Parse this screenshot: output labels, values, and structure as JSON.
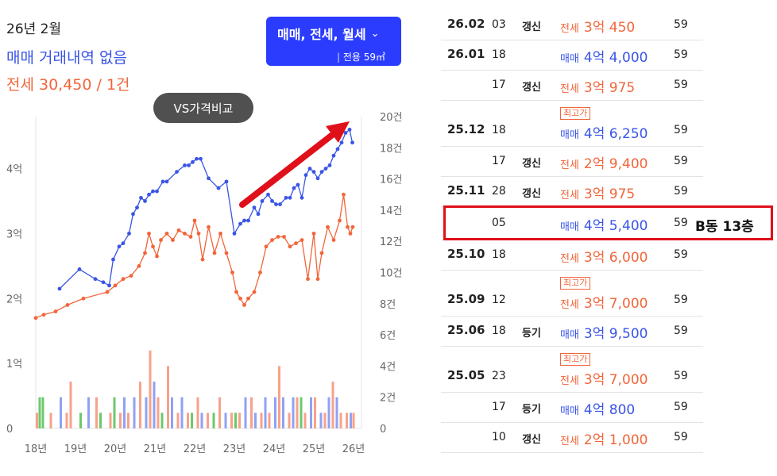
{
  "summary": {
    "month": "26년 2월",
    "sale_line": "매매 거래내역 없음",
    "rent_line": "전세 30,450 / 1건"
  },
  "filter": {
    "label": "매매, 전세, 월세",
    "sub": "전용 59㎡"
  },
  "compare_button": "VS가격비교",
  "colors": {
    "sale": "#3a55e6",
    "rent": "#f2653a",
    "highlight": "#e0101a",
    "filter_bg": "#2b3cff"
  },
  "icons": {
    "filter_chevron": "chevron-down-icon",
    "trend_arrow": "trend-up-arrow-icon"
  },
  "annotation": "B동 13층",
  "chart_data": {
    "type": "line",
    "x_tick_labels": [
      "18년",
      "19년",
      "20년",
      "21년",
      "22년",
      "23년",
      "24년",
      "25년",
      "26년"
    ],
    "y_left_tick_labels": [
      "0",
      "1억",
      "2억",
      "3억",
      "4억"
    ],
    "y_left_range": [
      0,
      4.8
    ],
    "y_right_tick_labels": [
      "0",
      "2건",
      "4건",
      "6건",
      "8건",
      "10건",
      "12건",
      "14건",
      "16건",
      "18건",
      "20건"
    ],
    "y_right_range": [
      0,
      20
    ],
    "series": [
      {
        "name": "매매",
        "color": "#3a55e6",
        "points": [
          [
            2018.6,
            2.15
          ],
          [
            2019.1,
            2.45
          ],
          [
            2019.5,
            2.3
          ],
          [
            2019.7,
            2.25
          ],
          [
            2019.85,
            2.2
          ],
          [
            2019.95,
            2.6
          ],
          [
            2020.1,
            2.8
          ],
          [
            2020.2,
            2.85
          ],
          [
            2020.35,
            3.0
          ],
          [
            2020.45,
            3.3
          ],
          [
            2020.55,
            3.4
          ],
          [
            2020.65,
            3.55
          ],
          [
            2020.75,
            3.5
          ],
          [
            2020.85,
            3.6
          ],
          [
            2020.95,
            3.65
          ],
          [
            2021.05,
            3.65
          ],
          [
            2021.2,
            3.8
          ],
          [
            2021.3,
            3.8
          ],
          [
            2021.55,
            3.95
          ],
          [
            2021.75,
            4.05
          ],
          [
            2021.85,
            4.05
          ],
          [
            2021.95,
            4.1
          ],
          [
            2022.05,
            4.15
          ],
          [
            2022.15,
            4.15
          ],
          [
            2022.35,
            3.85
          ],
          [
            2022.6,
            3.7
          ],
          [
            2022.8,
            3.8
          ],
          [
            2023.0,
            3.0
          ],
          [
            2023.15,
            3.15
          ],
          [
            2023.25,
            3.2
          ],
          [
            2023.35,
            3.2
          ],
          [
            2023.5,
            3.4
          ],
          [
            2023.6,
            3.3
          ],
          [
            2023.7,
            3.5
          ],
          [
            2023.85,
            3.6
          ],
          [
            2023.95,
            3.5
          ],
          [
            2024.05,
            3.45
          ],
          [
            2024.15,
            3.45
          ],
          [
            2024.3,
            3.55
          ],
          [
            2024.4,
            3.55
          ],
          [
            2024.5,
            3.7
          ],
          [
            2024.6,
            3.75
          ],
          [
            2024.7,
            3.55
          ],
          [
            2024.8,
            3.9
          ],
          [
            2024.9,
            4.0
          ],
          [
            2025.0,
            3.95
          ],
          [
            2025.1,
            3.85
          ],
          [
            2025.2,
            3.95
          ],
          [
            2025.3,
            4.0
          ],
          [
            2025.4,
            4.05
          ],
          [
            2025.5,
            4.2
          ],
          [
            2025.6,
            4.3
          ],
          [
            2025.7,
            4.4
          ],
          [
            2025.8,
            4.55
          ],
          [
            2025.9,
            4.6
          ],
          [
            2025.97,
            4.4
          ]
        ]
      },
      {
        "name": "전세",
        "color": "#f2653a",
        "points": [
          [
            2018.0,
            1.7
          ],
          [
            2018.2,
            1.75
          ],
          [
            2018.5,
            1.8
          ],
          [
            2018.8,
            1.9
          ],
          [
            2019.2,
            2.0
          ],
          [
            2019.8,
            2.1
          ],
          [
            2020.0,
            2.2
          ],
          [
            2020.2,
            2.3
          ],
          [
            2020.4,
            2.35
          ],
          [
            2020.6,
            2.5
          ],
          [
            2020.75,
            2.7
          ],
          [
            2020.85,
            3.0
          ],
          [
            2020.95,
            2.8
          ],
          [
            2021.05,
            2.65
          ],
          [
            2021.15,
            2.9
          ],
          [
            2021.3,
            3.0
          ],
          [
            2021.45,
            2.9
          ],
          [
            2021.6,
            3.05
          ],
          [
            2021.75,
            3.0
          ],
          [
            2021.9,
            2.95
          ],
          [
            2022.0,
            3.2
          ],
          [
            2022.1,
            3.0
          ],
          [
            2022.2,
            2.6
          ],
          [
            2022.35,
            3.1
          ],
          [
            2022.5,
            2.7
          ],
          [
            2022.65,
            3.0
          ],
          [
            2022.8,
            2.7
          ],
          [
            2022.95,
            2.4
          ],
          [
            2023.05,
            2.1
          ],
          [
            2023.15,
            2.0
          ],
          [
            2023.25,
            1.9
          ],
          [
            2023.35,
            2.0
          ],
          [
            2023.5,
            2.1
          ],
          [
            2023.65,
            2.4
          ],
          [
            2023.8,
            2.8
          ],
          [
            2023.95,
            2.9
          ],
          [
            2024.1,
            2.95
          ],
          [
            2024.25,
            2.95
          ],
          [
            2024.4,
            2.8
          ],
          [
            2024.55,
            2.85
          ],
          [
            2024.7,
            2.9
          ],
          [
            2024.85,
            2.3
          ],
          [
            2025.0,
            3.0
          ],
          [
            2025.1,
            2.3
          ],
          [
            2025.2,
            2.7
          ],
          [
            2025.35,
            3.1
          ],
          [
            2025.5,
            2.9
          ],
          [
            2025.65,
            3.2
          ],
          [
            2025.75,
            3.6
          ],
          [
            2025.85,
            3.1
          ],
          [
            2025.92,
            3.0
          ],
          [
            2025.98,
            3.1
          ]
        ]
      }
    ],
    "volume_bars": {
      "series_order": [
        "전세",
        "매매",
        "월세"
      ],
      "colors": [
        "#f7a28a",
        "#8fa2f4",
        "#6cc86c"
      ],
      "bars": [
        [
          2018.0,
          [
            1,
            0,
            0
          ]
        ],
        [
          2018.07,
          [
            0,
            0,
            2
          ]
        ],
        [
          2018.15,
          [
            0,
            0,
            2
          ]
        ],
        [
          2018.35,
          [
            1,
            0,
            0
          ]
        ],
        [
          2018.6,
          [
            0,
            2,
            0
          ]
        ],
        [
          2018.75,
          [
            1,
            0,
            0
          ]
        ],
        [
          2018.85,
          [
            3,
            0,
            0
          ]
        ],
        [
          2019.1,
          [
            0,
            0,
            1
          ]
        ],
        [
          2019.3,
          [
            0,
            2,
            0
          ]
        ],
        [
          2019.5,
          [
            2,
            0,
            0
          ]
        ],
        [
          2019.6,
          [
            0,
            0,
            1
          ]
        ],
        [
          2019.85,
          [
            1,
            0,
            0
          ]
        ],
        [
          2019.95,
          [
            0,
            0,
            2
          ]
        ],
        [
          2020.1,
          [
            1,
            0,
            0
          ]
        ],
        [
          2020.2,
          [
            0,
            2,
            0
          ]
        ],
        [
          2020.3,
          [
            1,
            0,
            0
          ]
        ],
        [
          2020.45,
          [
            0,
            2,
            0
          ]
        ],
        [
          2020.6,
          [
            3,
            0,
            0
          ]
        ],
        [
          2020.75,
          [
            0,
            2,
            0
          ]
        ],
        [
          2020.85,
          [
            5,
            0,
            0
          ]
        ],
        [
          2020.95,
          [
            0,
            3,
            0
          ]
        ],
        [
          2021.05,
          [
            2,
            0,
            0
          ]
        ],
        [
          2021.15,
          [
            0,
            0,
            1
          ]
        ],
        [
          2021.3,
          [
            4,
            0,
            0
          ]
        ],
        [
          2021.4,
          [
            0,
            2,
            0
          ]
        ],
        [
          2021.55,
          [
            1,
            0,
            0
          ]
        ],
        [
          2021.65,
          [
            0,
            2,
            0
          ]
        ],
        [
          2021.8,
          [
            1,
            0,
            0
          ]
        ],
        [
          2021.9,
          [
            0,
            0,
            1
          ]
        ],
        [
          2022.05,
          [
            2,
            0,
            0
          ]
        ],
        [
          2022.15,
          [
            0,
            1,
            0
          ]
        ],
        [
          2022.3,
          [
            1,
            0,
            0
          ]
        ],
        [
          2022.45,
          [
            0,
            0,
            1
          ]
        ],
        [
          2022.6,
          [
            2,
            0,
            0
          ]
        ],
        [
          2022.75,
          [
            0,
            1,
            0
          ]
        ],
        [
          2022.9,
          [
            1,
            0,
            0
          ]
        ],
        [
          2023.0,
          [
            0,
            0,
            1
          ]
        ],
        [
          2023.1,
          [
            1,
            0,
            0
          ]
        ],
        [
          2023.25,
          [
            0,
            2,
            0
          ]
        ],
        [
          2023.4,
          [
            2,
            0,
            0
          ]
        ],
        [
          2023.5,
          [
            0,
            1,
            0
          ]
        ],
        [
          2023.65,
          [
            1,
            0,
            0
          ]
        ],
        [
          2023.75,
          [
            0,
            2,
            0
          ]
        ],
        [
          2023.85,
          [
            1,
            0,
            0
          ]
        ],
        [
          2024.0,
          [
            0,
            2,
            0
          ]
        ],
        [
          2024.1,
          [
            4,
            0,
            0
          ]
        ],
        [
          2024.2,
          [
            0,
            2,
            0
          ]
        ],
        [
          2024.35,
          [
            1,
            0,
            0
          ]
        ],
        [
          2024.45,
          [
            0,
            2,
            0
          ]
        ],
        [
          2024.55,
          [
            2,
            0,
            0
          ]
        ],
        [
          2024.65,
          [
            0,
            0,
            2
          ]
        ],
        [
          2024.75,
          [
            1,
            0,
            0
          ]
        ],
        [
          2024.9,
          [
            0,
            2,
            0
          ]
        ],
        [
          2025.0,
          [
            2,
            0,
            0
          ]
        ],
        [
          2025.15,
          [
            0,
            1,
            0
          ]
        ],
        [
          2025.25,
          [
            1,
            0,
            0
          ]
        ],
        [
          2025.35,
          [
            0,
            2,
            0
          ]
        ],
        [
          2025.45,
          [
            3,
            0,
            0
          ]
        ],
        [
          2025.55,
          [
            0,
            2,
            0
          ]
        ],
        [
          2025.65,
          [
            1,
            0,
            0
          ]
        ],
        [
          2025.8,
          [
            1,
            0,
            0
          ]
        ],
        [
          2025.9,
          [
            0,
            1,
            0
          ]
        ],
        [
          2025.97,
          [
            1,
            0,
            0
          ]
        ]
      ]
    }
  },
  "transactions": [
    {
      "date": "26.02",
      "day": "03",
      "renew": "갱신",
      "badge": "",
      "type": "전세",
      "type_class": "rent",
      "price": "3억 450",
      "area": "59"
    },
    {
      "date": "26.01",
      "day": "18",
      "renew": "",
      "badge": "",
      "type": "매매",
      "type_class": "sale",
      "price": "4억 4,000",
      "area": "59"
    },
    {
      "date": "",
      "day": "17",
      "renew": "갱신",
      "badge": "",
      "type": "전세",
      "type_class": "rent",
      "price": "3억 975",
      "area": "59"
    },
    {
      "date": "25.12",
      "day": "18",
      "renew": "",
      "badge": "최고가",
      "type": "매매",
      "type_class": "sale",
      "price": "4억 6,250",
      "area": "59"
    },
    {
      "date": "",
      "day": "17",
      "renew": "갱신",
      "badge": "",
      "type": "전세",
      "type_class": "rent",
      "price": "2억 9,400",
      "area": "59"
    },
    {
      "date": "25.11",
      "day": "28",
      "renew": "갱신",
      "badge": "",
      "type": "전세",
      "type_class": "rent",
      "price": "3억 975",
      "area": "59"
    },
    {
      "date": "",
      "day": "05",
      "renew": "",
      "badge": "",
      "type": "매매",
      "type_class": "sale",
      "price": "4억 5,400",
      "area": "59"
    },
    {
      "date": "25.10",
      "day": "18",
      "renew": "",
      "badge": "",
      "type": "전세",
      "type_class": "rent",
      "price": "3억 6,000",
      "area": "59"
    },
    {
      "date": "25.09",
      "day": "12",
      "renew": "",
      "badge": "최고가",
      "type": "전세",
      "type_class": "rent",
      "price": "3억 7,000",
      "area": "59"
    },
    {
      "date": "25.06",
      "day": "18",
      "renew": "등기",
      "badge": "",
      "type": "매매",
      "type_class": "sale",
      "price": "3억 9,500",
      "area": "59"
    },
    {
      "date": "25.05",
      "day": "23",
      "renew": "",
      "badge": "최고가",
      "type": "전세",
      "type_class": "rent",
      "price": "3억 7,000",
      "area": "59"
    },
    {
      "date": "",
      "day": "17",
      "renew": "등기",
      "badge": "",
      "type": "매매",
      "type_class": "sale",
      "price": "4억 800",
      "area": "59"
    },
    {
      "date": "",
      "day": "10",
      "renew": "갱신",
      "badge": "",
      "type": "전세",
      "type_class": "rent",
      "price": "2억 1,000",
      "area": "59"
    }
  ]
}
